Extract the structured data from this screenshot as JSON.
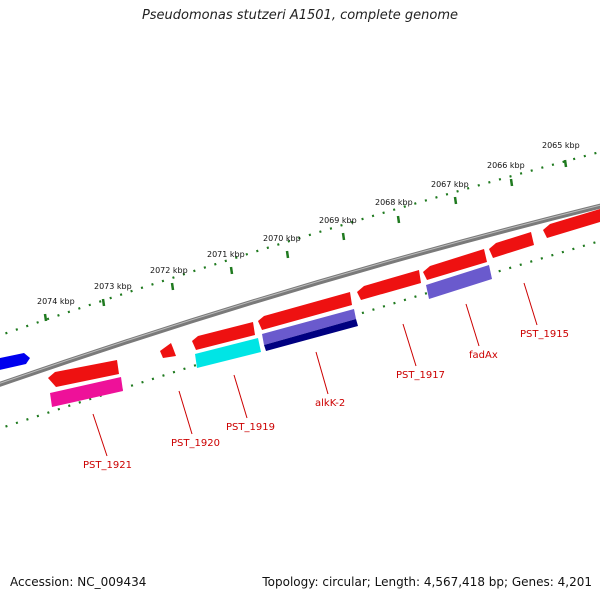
{
  "title": "Pseudomonas stutzeri A1501, complete genome",
  "footer": {
    "accession": "Accession: NC_009434",
    "summary": "Topology: circular; Length: 4,567,418 bp; Genes: 4,201"
  },
  "colors": {
    "backbone": "#7a7a7a",
    "tick": "#1f7a1f",
    "label": "#cc0000",
    "gene_red": "#ee1111",
    "gene_blue": "#0000ee",
    "gene_magenta": "#ee1199",
    "gene_cyan": "#00e5e5",
    "gene_purple": "#6a5acd",
    "gene_navy": "#000080"
  },
  "scale_labels": [
    "2074 kbp",
    "2073 kbp",
    "2072 kbp",
    "2071 kbp",
    "2070 kbp",
    "2069 kbp",
    "2068 kbp",
    "2067 kbp",
    "2066 kbp",
    "2065 kbp"
  ],
  "gene_labels": [
    "PST_1921",
    "PST_1920",
    "PST_1919",
    "alkK-2",
    "PST_1917",
    "fadAx",
    "PST_1915"
  ]
}
